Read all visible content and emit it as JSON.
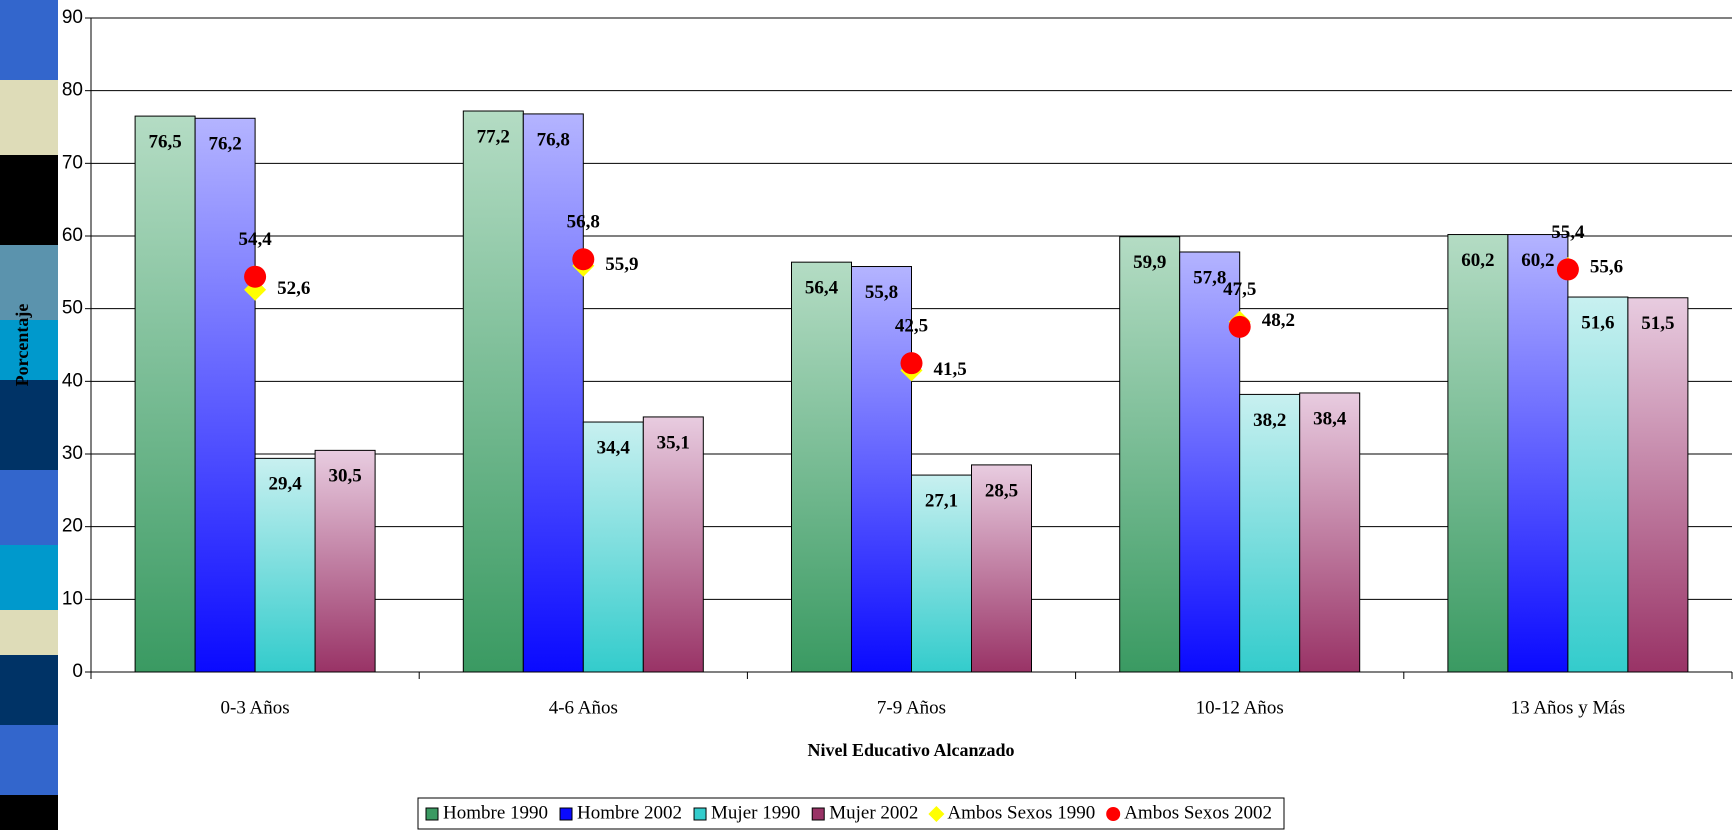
{
  "chart_data": {
    "type": "bar",
    "x_label": "Nivel Educativo Alcanzado",
    "y_label": "Porcentaje",
    "categories": [
      "0-3 Años",
      "4-6 Años",
      "7-9 Años",
      "10-12 Años",
      "13 Años y Más"
    ],
    "ylim": [
      0,
      90
    ],
    "yticks": [
      0,
      10,
      20,
      30,
      40,
      50,
      60,
      70,
      80,
      90
    ],
    "grid": true,
    "legend": "bottom",
    "series": [
      {
        "name": "Hombre 1990",
        "kind": "bar",
        "color": "#3a9a62",
        "color_top": "#b4dcc4",
        "values": [
          76.5,
          77.2,
          56.4,
          59.9,
          60.2
        ],
        "value_labels": [
          "76,5",
          "77,2",
          "56,4",
          "59,9",
          "60,2"
        ]
      },
      {
        "name": "Hombre 2002",
        "kind": "bar",
        "color": "#0a0aff",
        "color_top": "#b4b4ff",
        "values": [
          76.2,
          76.8,
          55.8,
          57.8,
          60.2
        ],
        "value_labels": [
          "76,2",
          "76,8",
          "55,8",
          "57,8",
          "60,2"
        ]
      },
      {
        "name": "Mujer 1990",
        "kind": "bar",
        "color": "#33cccc",
        "color_top": "#c8f0f0",
        "values": [
          29.4,
          34.4,
          27.1,
          38.2,
          51.6
        ],
        "value_labels": [
          "29,4",
          "34,4",
          "27,1",
          "38,2",
          "51,6"
        ]
      },
      {
        "name": "Mujer 2002",
        "kind": "bar",
        "color": "#993366",
        "color_top": "#e8cce0",
        "values": [
          30.5,
          35.1,
          28.5,
          38.4,
          51.5
        ],
        "value_labels": [
          "30,5",
          "35,1",
          "28,5",
          "38,4",
          "51,5"
        ]
      },
      {
        "name": "Ambos Sexos 1990",
        "kind": "diamond",
        "color": "#ffff00",
        "values": [
          52.6,
          55.9,
          41.5,
          48.2,
          55.6
        ],
        "value_labels": [
          "52,6",
          "55,9",
          "41,5",
          "48,2",
          "55,6"
        ]
      },
      {
        "name": "Ambos Sexos 2002",
        "kind": "circle",
        "color": "#ff0000",
        "values": [
          54.4,
          56.8,
          42.5,
          47.5,
          55.4
        ],
        "value_labels": [
          "54,4",
          "56,8",
          "42,5",
          "47,5",
          "55,4"
        ]
      }
    ]
  }
}
